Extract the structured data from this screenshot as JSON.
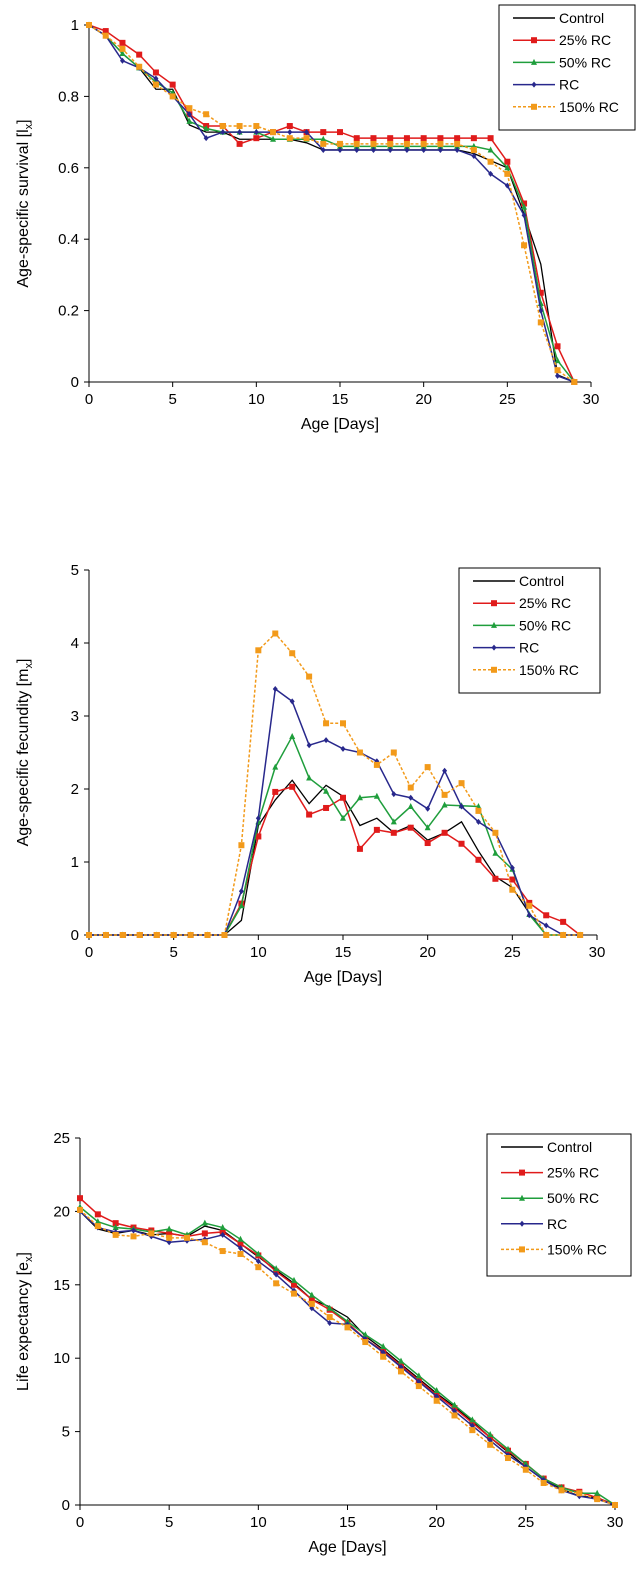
{
  "chart_data": [
    {
      "type": "line",
      "xlabel": "Age [Days]",
      "ylabel": "Age-specific survival [l",
      "ylabel_sub": "x",
      "ylabel_suffix": "]",
      "xlim": [
        0,
        30
      ],
      "ylim": [
        0,
        1
      ],
      "xticks": [
        "0",
        "5",
        "10",
        "15",
        "20",
        "25",
        "30"
      ],
      "yticks": [
        "0",
        "0.2",
        "0.4",
        "0.6",
        "0.8",
        "1"
      ],
      "legend_position": "top-right",
      "grid": false,
      "x": [
        0,
        1,
        2,
        3,
        4,
        5,
        6,
        7,
        8,
        9,
        10,
        11,
        12,
        13,
        14,
        15,
        16,
        17,
        18,
        19,
        20,
        21,
        22,
        23,
        24,
        25,
        26,
        27,
        28,
        29
      ],
      "series": [
        {
          "name": "Control",
          "color": "#000000",
          "marker": "none",
          "dashed": false,
          "values": [
            1,
            0.97,
            0.92,
            0.88,
            0.82,
            0.82,
            0.72,
            0.7,
            0.7,
            0.68,
            0.68,
            0.68,
            0.68,
            0.67,
            0.65,
            0.65,
            0.65,
            0.65,
            0.65,
            0.65,
            0.65,
            0.65,
            0.65,
            0.64,
            0.62,
            0.6,
            0.47,
            0.33,
            0.02,
            0
          ]
        },
        {
          "name": "25% RC",
          "color": "#e01b1b",
          "marker": "square",
          "dashed": false,
          "values": [
            1,
            0.983,
            0.95,
            0.917,
            0.867,
            0.833,
            0.75,
            0.717,
            0.717,
            0.667,
            0.683,
            0.7,
            0.717,
            0.7,
            0.7,
            0.7,
            0.683,
            0.683,
            0.683,
            0.683,
            0.683,
            0.683,
            0.683,
            0.683,
            0.683,
            0.617,
            0.5,
            0.25,
            0.1,
            0
          ]
        },
        {
          "name": "50% RC",
          "color": "#1f9e3c",
          "marker": "triangle",
          "dashed": false,
          "values": [
            1,
            0.97,
            0.92,
            0.88,
            0.84,
            0.81,
            0.73,
            0.71,
            0.7,
            0.7,
            0.7,
            0.68,
            0.68,
            0.68,
            0.68,
            0.66,
            0.66,
            0.66,
            0.66,
            0.66,
            0.66,
            0.66,
            0.66,
            0.66,
            0.65,
            0.6,
            0.49,
            0.22,
            0.06,
            0
          ]
        },
        {
          "name": "RC",
          "color": "#28288c",
          "marker": "diamond",
          "dashed": false,
          "values": [
            1,
            0.97,
            0.9,
            0.88,
            0.85,
            0.8,
            0.75,
            0.683,
            0.7,
            0.7,
            0.7,
            0.7,
            0.7,
            0.7,
            0.65,
            0.65,
            0.65,
            0.65,
            0.65,
            0.65,
            0.65,
            0.65,
            0.65,
            0.633,
            0.583,
            0.55,
            0.467,
            0.2,
            0.017,
            0
          ]
        },
        {
          "name": "150% RC",
          "color": "#f29a1a",
          "marker": "square",
          "dashed": true,
          "values": [
            1,
            0.97,
            0.933,
            0.883,
            0.833,
            0.8,
            0.767,
            0.75,
            0.717,
            0.717,
            0.717,
            0.7,
            0.683,
            0.683,
            0.667,
            0.667,
            0.667,
            0.667,
            0.667,
            0.667,
            0.667,
            0.667,
            0.667,
            0.65,
            0.617,
            0.583,
            0.383,
            0.167,
            0.033,
            0
          ]
        }
      ]
    },
    {
      "type": "line",
      "xlabel": "Age  [Days]",
      "ylabel": "Age-specific fecundity [m",
      "ylabel_sub": "x",
      "ylabel_suffix": "]",
      "xlim": [
        0,
        30
      ],
      "ylim": [
        0,
        5
      ],
      "xticks": [
        "0",
        "5",
        "10",
        "15",
        "20",
        "25",
        "30"
      ],
      "yticks": [
        "0",
        "1",
        "2",
        "3",
        "4",
        "5"
      ],
      "legend_position": "top-right",
      "grid": false,
      "x": [
        0,
        1,
        2,
        3,
        4,
        5,
        6,
        7,
        8,
        9,
        10,
        11,
        12,
        13,
        14,
        15,
        16,
        17,
        18,
        19,
        20,
        21,
        22,
        23,
        24,
        25,
        26,
        27,
        28,
        29
      ],
      "series": [
        {
          "name": "Control",
          "color": "#000000",
          "marker": "none",
          "dashed": false,
          "values": [
            0,
            0,
            0,
            0,
            0,
            0,
            0,
            0,
            0,
            0.2,
            1.5,
            1.85,
            2.12,
            1.8,
            2.05,
            1.9,
            1.5,
            1.6,
            1.4,
            1.5,
            1.3,
            1.4,
            1.55,
            1.15,
            0.8,
            0.65,
            0.3,
            0,
            0,
            0
          ]
        },
        {
          "name": "25% RC",
          "color": "#e01b1b",
          "marker": "square",
          "dashed": false,
          "values": [
            0,
            0,
            0,
            0,
            0,
            0,
            0,
            0,
            0,
            0.43,
            1.35,
            1.96,
            2.03,
            1.65,
            1.74,
            1.88,
            1.18,
            1.44,
            1.4,
            1.47,
            1.26,
            1.4,
            1.25,
            1.03,
            0.77,
            0.76,
            0.44,
            0.27,
            0.18,
            0
          ]
        },
        {
          "name": "50% RC",
          "color": "#1f9e3c",
          "marker": "triangle",
          "dashed": false,
          "values": [
            0,
            0,
            0,
            0,
            0,
            0,
            0,
            0,
            0,
            0.4,
            1.55,
            2.3,
            2.72,
            2.15,
            1.97,
            1.6,
            1.88,
            1.9,
            1.55,
            1.76,
            1.47,
            1.78,
            1.77,
            1.76,
            1.12,
            0.9,
            0.28,
            0,
            0,
            0
          ]
        },
        {
          "name": "RC",
          "color": "#28288c",
          "marker": "diamond",
          "dashed": false,
          "values": [
            0,
            0,
            0,
            0,
            0,
            0,
            0,
            0,
            0,
            0.6,
            1.6,
            3.37,
            3.2,
            2.6,
            2.67,
            2.55,
            2.5,
            2.38,
            1.93,
            1.88,
            1.73,
            2.25,
            1.76,
            1.55,
            1.4,
            0.92,
            0.27,
            0.13,
            0,
            0
          ]
        },
        {
          "name": "150% RC",
          "color": "#f29a1a",
          "marker": "square",
          "dashed": true,
          "values": [
            0,
            0,
            0,
            0,
            0,
            0,
            0,
            0,
            0,
            1.23,
            3.9,
            4.13,
            3.86,
            3.54,
            2.9,
            2.9,
            2.5,
            2.33,
            2.5,
            2.02,
            2.3,
            1.92,
            2.08,
            1.7,
            1.4,
            0.62,
            0.4,
            0,
            0,
            0
          ]
        }
      ]
    },
    {
      "type": "line",
      "xlabel": "Age [Days]",
      "ylabel": "Life expectancy [e",
      "ylabel_sub": "x",
      "ylabel_suffix": "]",
      "xlim": [
        0,
        30
      ],
      "ylim": [
        0,
        25
      ],
      "xticks": [
        "0",
        "5",
        "10",
        "15",
        "20",
        "25",
        "30"
      ],
      "yticks": [
        "0",
        "5",
        "10",
        "15",
        "20",
        "25"
      ],
      "legend_position": "top-right",
      "grid": false,
      "x": [
        0,
        1,
        2,
        3,
        4,
        5,
        6,
        7,
        8,
        9,
        10,
        11,
        12,
        13,
        14,
        15,
        16,
        17,
        18,
        19,
        20,
        21,
        22,
        23,
        24,
        25,
        26,
        27,
        28,
        29,
        30
      ],
      "series": [
        {
          "name": "Control",
          "color": "#000000",
          "marker": "none",
          "dashed": false,
          "values": [
            20,
            18.8,
            18.5,
            18.7,
            18.4,
            18.5,
            18.3,
            19.0,
            18.7,
            17.8,
            16.9,
            16.0,
            15.1,
            14.0,
            13.5,
            12.8,
            11.5,
            10.6,
            9.6,
            8.6,
            7.6,
            6.7,
            5.7,
            4.6,
            3.6,
            2.6,
            1.7,
            1.1,
            0.6,
            0.5,
            0
          ]
        },
        {
          "name": "25% RC",
          "color": "#e01b1b",
          "marker": "square",
          "dashed": false,
          "values": [
            20.9,
            19.8,
            19.2,
            18.9,
            18.7,
            18.5,
            18.3,
            18.5,
            18.6,
            17.8,
            17.0,
            15.9,
            15.0,
            14.0,
            13.3,
            12.4,
            11.3,
            10.5,
            9.5,
            8.5,
            7.5,
            6.6,
            5.6,
            4.6,
            3.7,
            2.8,
            1.8,
            1.2,
            0.9,
            0.5,
            0
          ]
        },
        {
          "name": "50% RC",
          "color": "#1f9e3c",
          "marker": "triangle",
          "dashed": false,
          "values": [
            20.3,
            19.3,
            18.9,
            18.8,
            18.6,
            18.8,
            18.4,
            19.2,
            18.9,
            18.1,
            17.1,
            16.1,
            15.3,
            14.3,
            13.4,
            12.5,
            11.6,
            10.8,
            9.8,
            8.8,
            7.8,
            6.8,
            5.8,
            4.8,
            3.8,
            2.8,
            1.8,
            1.2,
            0.8,
            0.8,
            0
          ]
        },
        {
          "name": "RC",
          "color": "#28288c",
          "marker": "diamond",
          "dashed": false,
          "values": [
            20.0,
            18.9,
            18.6,
            18.7,
            18.3,
            17.9,
            18.0,
            18.1,
            18.4,
            17.5,
            16.6,
            15.7,
            14.6,
            13.4,
            12.4,
            12.3,
            11.3,
            10.4,
            9.4,
            8.4,
            7.4,
            6.4,
            5.4,
            4.4,
            3.4,
            2.6,
            1.7,
            1.0,
            0.6,
            0.4,
            0
          ]
        },
        {
          "name": "150% RC",
          "color": "#f29a1a",
          "marker": "square",
          "dashed": true,
          "values": [
            20.1,
            19.0,
            18.4,
            18.3,
            18.5,
            18.2,
            18.2,
            17.9,
            17.3,
            17.1,
            16.2,
            15.1,
            14.4,
            13.7,
            12.8,
            12.1,
            11.1,
            10.1,
            9.1,
            8.1,
            7.1,
            6.1,
            5.1,
            4.1,
            3.2,
            2.4,
            1.5,
            1.0,
            0.8,
            0.4,
            0
          ]
        }
      ]
    }
  ]
}
